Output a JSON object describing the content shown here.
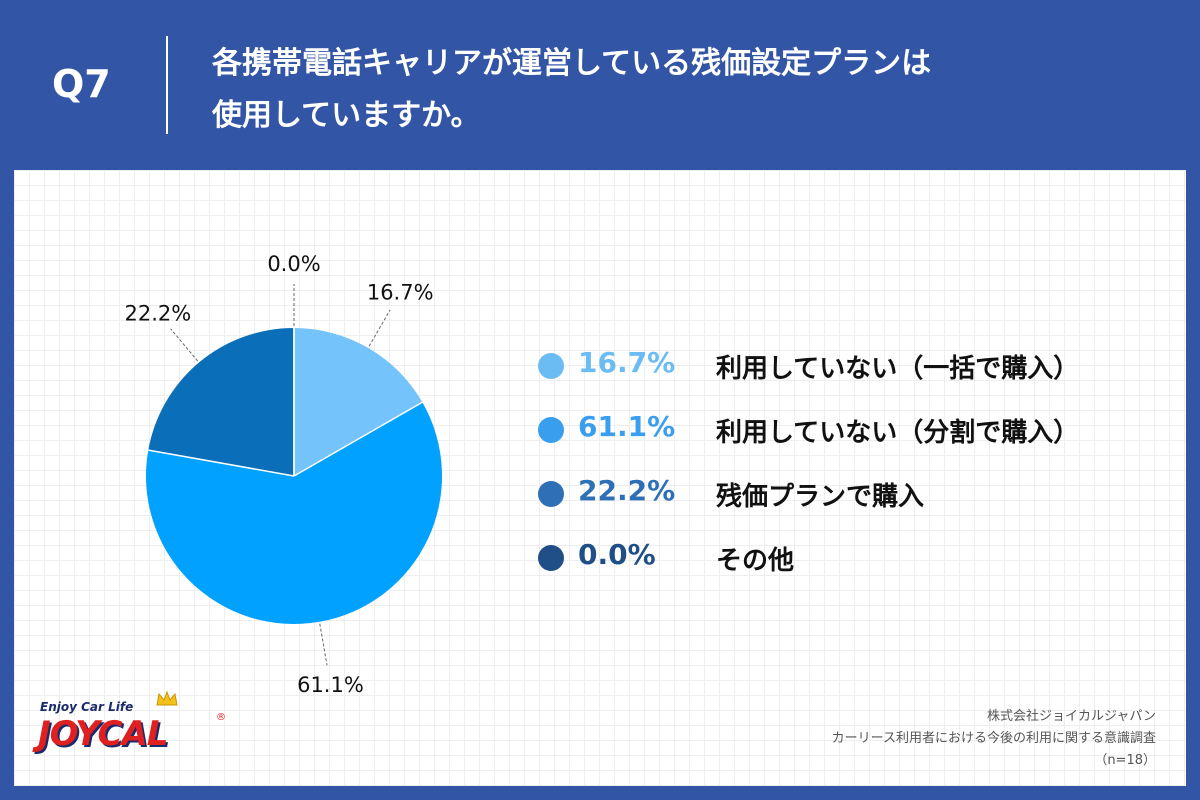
{
  "header": {
    "question_number": "Q7",
    "title_line1": "各携帯電話キャリアが運営している残価設定プランは",
    "title_line2": "使用していますか。"
  },
  "chart_data": {
    "type": "pie",
    "start_angle_deg": 0,
    "direction": "clockwise",
    "slices": [
      {
        "label": "利用していない（一括で購入）",
        "value": 16.7,
        "value_label": "16.7%",
        "color": "#74c4fb",
        "legend_color": "#6bbcf2"
      },
      {
        "label": "利用していない（分割で購入）",
        "value": 61.1,
        "value_label": "61.1%",
        "color": "#00a1ff",
        "legend_color": "#3a9eef"
      },
      {
        "label": "残価プランで購入",
        "value": 22.2,
        "value_label": "22.2%",
        "color": "#0a6fb8",
        "legend_color": "#2e6fb5"
      },
      {
        "label": "その他",
        "value": 0.0,
        "value_label": "0.0%",
        "color": "#1f4f86",
        "legend_color": "#1f4f86"
      }
    ]
  },
  "logo": {
    "tagline": "Enjoy Car Life",
    "brand": "JOYCAL",
    "reg_mark": "®"
  },
  "source": {
    "line1": "株式会社ジョイカルジャパン",
    "line2": "カーリース利用者における今後の利用に関する意識調査",
    "line3": "（n=18）"
  }
}
